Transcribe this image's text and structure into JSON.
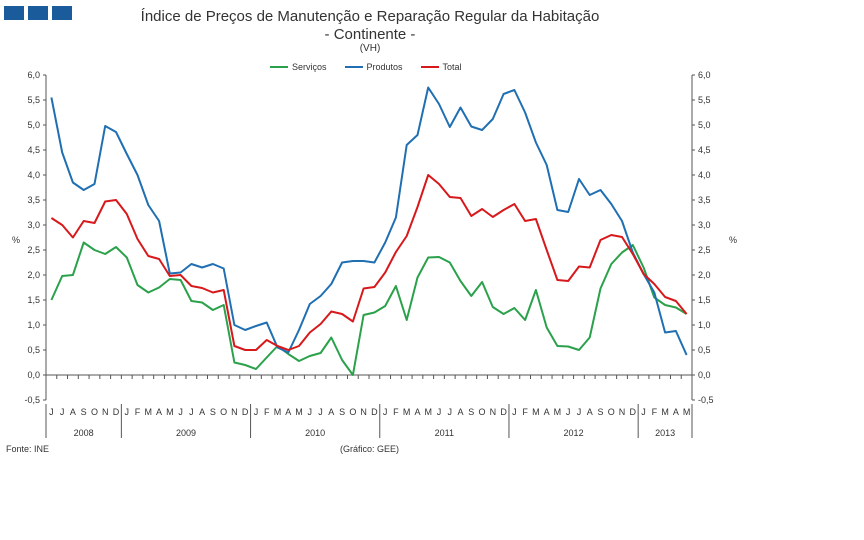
{
  "title": "Índice de Preços de Manutenção e Reparação Regular da Habitação",
  "subtitle": "- Continente -",
  "unit": "(VH)",
  "source": "Fonte: INE",
  "credit": "(Gráfico: GEE)",
  "chart_data": {
    "type": "line",
    "ylabel": "%",
    "ylim": [
      -0.5,
      6.0
    ],
    "yticks": [
      "-0,5",
      "0,0",
      "0,5",
      "1,0",
      "1,5",
      "2,0",
      "2,5",
      "3,0",
      "3,5",
      "4,0",
      "4,5",
      "5,0",
      "5,5",
      "6,0"
    ],
    "months": [
      "J",
      "J",
      "A",
      "S",
      "O",
      "N",
      "D",
      "J",
      "F",
      "M",
      "A",
      "M",
      "J",
      "J",
      "A",
      "S",
      "O",
      "N",
      "D",
      "J",
      "F",
      "M",
      "A",
      "M",
      "J",
      "J",
      "A",
      "S",
      "O",
      "N",
      "D",
      "J",
      "F",
      "M",
      "A",
      "M",
      "J",
      "J",
      "A",
      "S",
      "O",
      "N",
      "D",
      "J",
      "F",
      "M",
      "A",
      "M",
      "J",
      "J",
      "A",
      "S",
      "O",
      "N",
      "D",
      "J",
      "F",
      "M",
      "A",
      "M"
    ],
    "years": [
      {
        "label": "2008",
        "start": 0,
        "count": 7
      },
      {
        "label": "2009",
        "start": 7,
        "count": 12
      },
      {
        "label": "2010",
        "start": 19,
        "count": 12
      },
      {
        "label": "2011",
        "start": 31,
        "count": 12
      },
      {
        "label": "2012",
        "start": 43,
        "count": 12
      },
      {
        "label": "2013",
        "start": 55,
        "count": 5
      }
    ],
    "series": [
      {
        "name": "Serviços",
        "color": "#2aa14a",
        "values": [
          1.5,
          1.98,
          2.0,
          2.65,
          2.5,
          2.42,
          2.56,
          2.35,
          1.8,
          1.65,
          1.75,
          1.92,
          1.9,
          1.48,
          1.45,
          1.3,
          1.4,
          0.25,
          0.2,
          0.12,
          0.35,
          0.58,
          0.42,
          0.28,
          0.38,
          0.44,
          0.75,
          0.3,
          0.0,
          1.2,
          1.25,
          1.38,
          1.78,
          1.1,
          1.95,
          2.35,
          2.36,
          2.25,
          1.88,
          1.58,
          1.86,
          1.36,
          1.22,
          1.34,
          1.1,
          1.7,
          0.95,
          0.58,
          0.57,
          0.5,
          0.75,
          1.73,
          2.22,
          2.45,
          2.6,
          2.15,
          1.55,
          1.4,
          1.35,
          1.22
        ]
      },
      {
        "name": "Produtos",
        "color": "#1f6fb2",
        "values": [
          5.55,
          4.45,
          3.85,
          3.7,
          3.82,
          4.98,
          4.86,
          4.42,
          4.0,
          3.4,
          3.08,
          2.03,
          2.05,
          2.22,
          2.15,
          2.22,
          2.13,
          1.0,
          0.9,
          0.98,
          1.05,
          0.55,
          0.45,
          0.9,
          1.42,
          1.58,
          1.82,
          2.25,
          2.28,
          2.28,
          2.25,
          2.65,
          3.15,
          4.6,
          4.8,
          5.75,
          5.42,
          4.96,
          5.35,
          4.97,
          4.9,
          5.12,
          5.62,
          5.7,
          5.25,
          4.65,
          4.2,
          3.3,
          3.26,
          3.92,
          3.6,
          3.7,
          3.42,
          3.08,
          2.45,
          2.02,
          1.65,
          0.85,
          0.88,
          0.4
        ]
      },
      {
        "name": "Total",
        "color": "#d7191c",
        "values": [
          3.14,
          3.0,
          2.75,
          3.08,
          3.04,
          3.47,
          3.5,
          3.22,
          2.72,
          2.38,
          2.32,
          1.98,
          2.0,
          1.78,
          1.74,
          1.65,
          1.7,
          0.58,
          0.5,
          0.5,
          0.7,
          0.58,
          0.5,
          0.58,
          0.85,
          1.02,
          1.27,
          1.22,
          1.07,
          1.73,
          1.76,
          2.05,
          2.46,
          2.78,
          3.36,
          4.0,
          3.82,
          3.56,
          3.54,
          3.18,
          3.32,
          3.16,
          3.3,
          3.42,
          3.08,
          3.12,
          2.5,
          1.9,
          1.88,
          2.17,
          2.15,
          2.7,
          2.8,
          2.76,
          2.42,
          2.02,
          1.82,
          1.56,
          1.48,
          1.22
        ]
      }
    ]
  }
}
